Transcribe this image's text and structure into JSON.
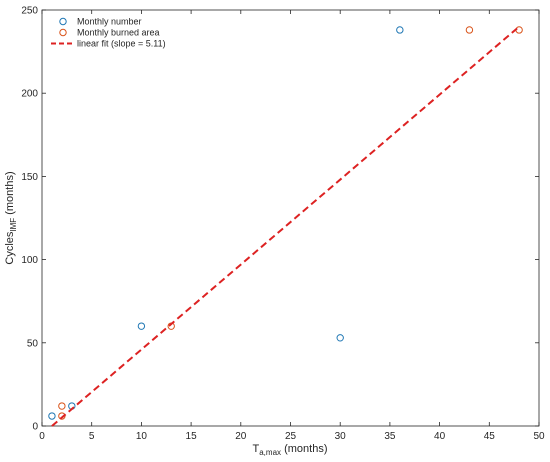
{
  "chart_data": {
    "type": "scatter",
    "xlim": [
      0,
      50
    ],
    "ylim": [
      0,
      250
    ],
    "xticks": [
      0,
      5,
      10,
      15,
      20,
      25,
      30,
      35,
      40,
      45,
      50
    ],
    "yticks": [
      0,
      50,
      100,
      150,
      200,
      250
    ],
    "xlabel": {
      "main": "T",
      "sub": "a,max",
      "suffix": " (months)"
    },
    "ylabel": {
      "main": "Cycles",
      "sub": "IMF",
      "suffix": " (months)"
    },
    "grid": false,
    "legend_position": "top-left",
    "series": [
      {
        "name": "Monthly number",
        "kind": "scatter",
        "marker": "circle-open",
        "color": "#1f77b4",
        "x": [
          1,
          3,
          10,
          30,
          36
        ],
        "y": [
          6,
          12,
          60,
          53,
          238
        ]
      },
      {
        "name": "Monthly burned area",
        "kind": "scatter",
        "marker": "circle-open",
        "color": "#d95319",
        "x": [
          2,
          2,
          13,
          43,
          48
        ],
        "y": [
          6,
          12,
          60,
          238,
          238
        ]
      },
      {
        "name": "linear fit (slope = 5.11)",
        "kind": "line",
        "style": "dashed",
        "color": "#dd2222",
        "x": [
          1,
          48
        ],
        "y": [
          0,
          240
        ]
      }
    ]
  }
}
